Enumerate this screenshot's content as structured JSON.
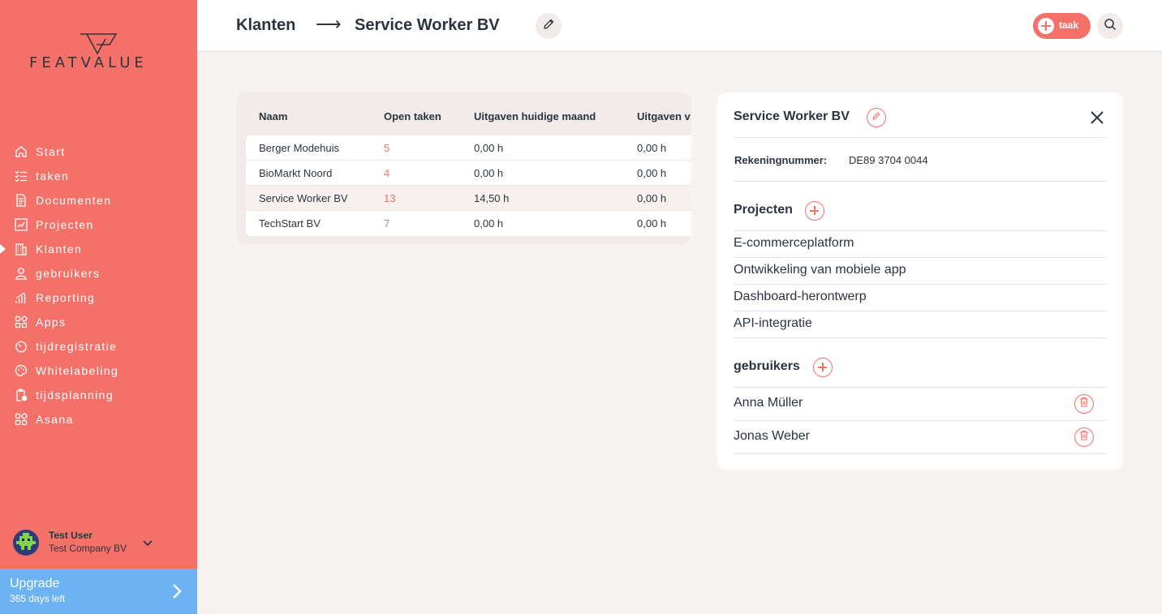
{
  "brand": {
    "logo_text": "FEATVALUE"
  },
  "sidebar": {
    "items": [
      {
        "label": "Start",
        "icon": "home-icon"
      },
      {
        "label": "taken",
        "icon": "tasks-icon"
      },
      {
        "label": "Documenten",
        "icon": "document-icon"
      },
      {
        "label": "Projecten",
        "icon": "chart-icon"
      },
      {
        "label": "Klanten",
        "icon": "building-icon",
        "active": true
      },
      {
        "label": "gebruikers",
        "icon": "user-icon"
      },
      {
        "label": "Reporting",
        "icon": "bar-chart-icon"
      },
      {
        "label": "Apps",
        "icon": "apps-icon"
      },
      {
        "label": "tijdregistratie",
        "icon": "timer-icon"
      },
      {
        "label": "Whitelabeling",
        "icon": "palette-icon"
      },
      {
        "label": "tijdsplanning",
        "icon": "clipboard-clock-icon"
      },
      {
        "label": "Asana",
        "icon": "apps-icon"
      }
    ],
    "user": {
      "name": "Test User",
      "company": "Test Company BV"
    },
    "upgrade": {
      "title": "Upgrade",
      "subtitle": "365 days left"
    }
  },
  "header": {
    "breadcrumb_parent": "Klanten",
    "breadcrumb_arrow": "⟶",
    "breadcrumb_current": "Service Worker BV",
    "task_button_label": "taak"
  },
  "table": {
    "columns": [
      "Naam",
      "Open taken",
      "Uitgaven huidige maand",
      "Uitgaven v"
    ],
    "rows": [
      {
        "name": "Berger Modehuis",
        "open": "5",
        "current": "0,00 h",
        "previous": "0,00 h"
      },
      {
        "name": "BioMarkt Noord",
        "open": "4",
        "current": "0,00 h",
        "previous": "0,00 h"
      },
      {
        "name": "Service Worker BV",
        "open": "13",
        "current": "14,50 h",
        "previous": "0,00 h"
      },
      {
        "name": "TechStart BV",
        "open": "7",
        "current": "0,00 h",
        "previous": "0,00 h"
      }
    ]
  },
  "detail": {
    "title": "Service Worker BV",
    "account_label": "Rekeningnummer:",
    "account_value": "DE89 3704 0044",
    "projects_title": "Projecten",
    "projects": [
      "E-commerceplatform",
      "Ontwikkeling van mobiele app",
      "Dashboard-herontwerp",
      "API-integratie"
    ],
    "users_title": "gebruikers",
    "users": [
      "Anna Müller",
      "Jonas Weber"
    ]
  },
  "colors": {
    "accent": "#f4716a",
    "upgrade": "#6db3f2",
    "text": "#2b3440",
    "background": "#f7f3f1"
  }
}
